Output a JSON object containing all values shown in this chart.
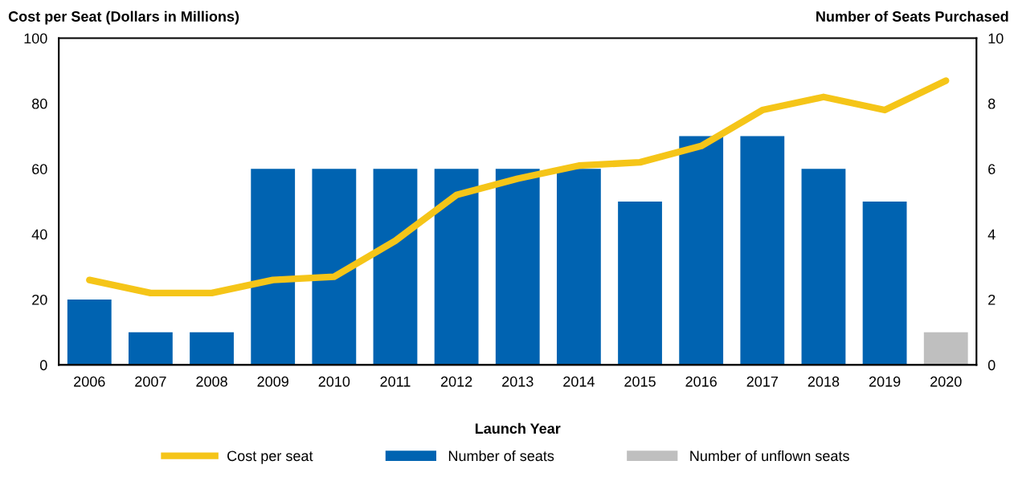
{
  "chart_data": {
    "type": "bar",
    "categories": [
      "2006",
      "2007",
      "2008",
      "2009",
      "2010",
      "2011",
      "2012",
      "2013",
      "2014",
      "2015",
      "2016",
      "2017",
      "2018",
      "2019",
      "2020"
    ],
    "series": [
      {
        "name": "Cost per seat",
        "type": "line",
        "axis": "y",
        "color": "#f5c518",
        "values": [
          26,
          22,
          22,
          26,
          27,
          38,
          52,
          57,
          61,
          62,
          67,
          78,
          82,
          78,
          87
        ]
      },
      {
        "name": "Number of seats",
        "axis": "y2",
        "color": "#0063b1",
        "values": [
          2,
          1,
          1,
          6,
          6,
          6,
          6,
          6,
          6,
          5,
          7,
          7,
          6,
          5,
          null
        ]
      },
      {
        "name": "Number of unflown seats",
        "axis": "y2",
        "color": "#bfbfbf",
        "values": [
          null,
          null,
          null,
          null,
          null,
          null,
          null,
          null,
          null,
          null,
          null,
          null,
          null,
          null,
          1
        ]
      }
    ],
    "ylabel": "Cost per Seat (Dollars in Millions)",
    "y2label": "Number of Seats Purchased",
    "xlabel": "Launch Year",
    "ylim": [
      0,
      100
    ],
    "yticks": [
      0,
      20,
      40,
      60,
      80,
      100
    ],
    "y2lim": [
      0,
      10
    ],
    "y2ticks": [
      0,
      2,
      4,
      6,
      8,
      10
    ],
    "grid": false,
    "legend": "bottom",
    "marker": "none",
    "line_style": "solid"
  }
}
